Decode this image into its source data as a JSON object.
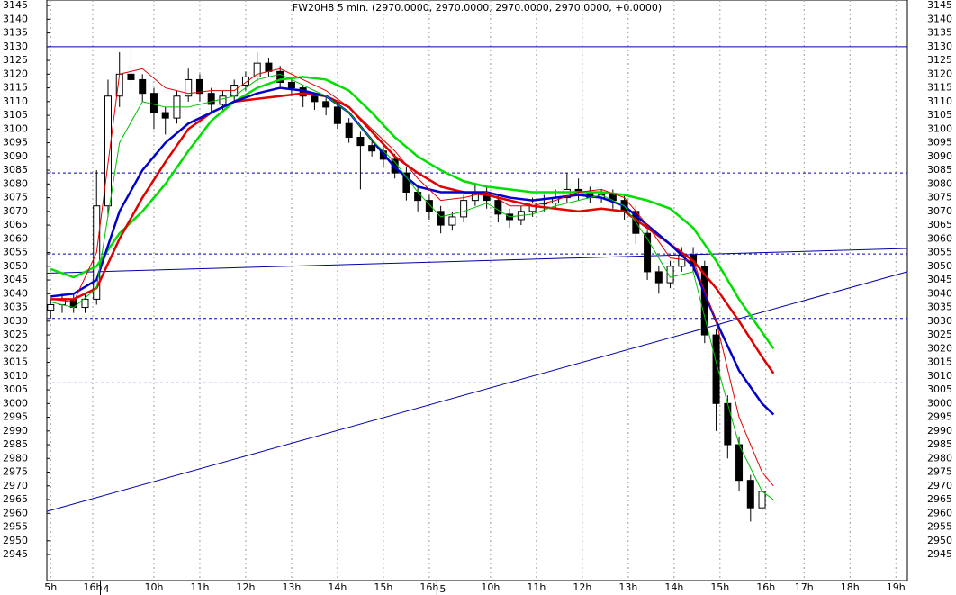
{
  "chart_data": {
    "type": "candlestick",
    "title": "FW20H8 5 min. (2970.0000, 2970.0000, 2970.0000, 2970.0000, +0.0000)",
    "xlim": [
      0,
      225
    ],
    "ylim": [
      2935.5,
      3147
    ],
    "xticks": [
      {
        "value": 1,
        "label": "5h"
      },
      {
        "value": 12,
        "label": "16h"
      },
      {
        "value": 28,
        "label": "10h"
      },
      {
        "value": 40,
        "label": "11h"
      },
      {
        "value": 52,
        "label": "12h"
      },
      {
        "value": 64,
        "label": "13h"
      },
      {
        "value": 76,
        "label": "14h"
      },
      {
        "value": 88,
        "label": "15h"
      },
      {
        "value": 100,
        "label": "16h"
      },
      {
        "value": 116,
        "label": "10h"
      },
      {
        "value": 128,
        "label": "11h"
      },
      {
        "value": 140,
        "label": "12h"
      },
      {
        "value": 152,
        "label": "13h"
      },
      {
        "value": 164,
        "label": "14h"
      },
      {
        "value": 176,
        "label": "15h"
      },
      {
        "value": 188,
        "label": "16h"
      },
      {
        "value": 198,
        "label": "17h"
      },
      {
        "value": 210,
        "label": "18h"
      },
      {
        "value": 222,
        "label": "19h"
      }
    ],
    "date_labels": [
      {
        "value": 14,
        "label": "4"
      },
      {
        "value": 102,
        "label": "5"
      }
    ],
    "yticks": [
      2945,
      2950,
      2955,
      2960,
      2965,
      2970,
      2975,
      2980,
      2985,
      2990,
      2995,
      3000,
      3005,
      3010,
      3015,
      3020,
      3025,
      3030,
      3035,
      3040,
      3045,
      3050,
      3055,
      3060,
      3065,
      3070,
      3075,
      3080,
      3085,
      3090,
      3095,
      3100,
      3105,
      3110,
      3115,
      3120,
      3125,
      3130,
      3135,
      3140,
      3145
    ],
    "grid": true,
    "up_color": "#ffffff",
    "down_color": "#000000",
    "x": [
      1,
      4,
      7,
      10,
      13,
      16,
      19,
      22,
      25,
      28,
      31,
      34,
      37,
      40,
      43,
      46,
      49,
      52,
      55,
      58,
      61,
      64,
      67,
      70,
      73,
      76,
      79,
      82,
      85,
      88,
      91,
      94,
      97,
      100,
      103,
      106,
      109,
      112,
      115,
      118,
      121,
      124,
      127,
      130,
      133,
      136,
      139,
      142,
      145,
      148,
      151,
      154,
      157,
      160,
      163,
      166,
      169,
      172,
      175,
      178,
      181,
      184,
      187
    ],
    "open": [
      3034,
      3036,
      3038,
      3035,
      3038,
      3072,
      3112,
      3120,
      3118,
      3113,
      3106,
      3104,
      3112,
      3118,
      3113,
      3109,
      3112,
      3116,
      3119,
      3124,
      3121,
      3117,
      3115,
      3112,
      3110,
      3108,
      3102,
      3097,
      3094,
      3092,
      3089,
      3084,
      3077,
      3074,
      3070,
      3065,
      3068,
      3074,
      3077,
      3074,
      3069,
      3067,
      3070,
      3073,
      3073,
      3075,
      3078,
      3077,
      3075,
      3076,
      3074,
      3070,
      3062,
      3048,
      3044,
      3050,
      3054,
      3050,
      3025,
      3000,
      2985,
      2972,
      2962
    ],
    "high": [
      3038,
      3040,
      3040,
      3040,
      3085,
      3118,
      3128,
      3130,
      3120,
      3115,
      3108,
      3114,
      3122,
      3120,
      3115,
      3114,
      3118,
      3121,
      3128,
      3126,
      3123,
      3118,
      3116,
      3113,
      3112,
      3110,
      3104,
      3099,
      3096,
      3094,
      3091,
      3086,
      3079,
      3076,
      3072,
      3070,
      3076,
      3080,
      3079,
      3076,
      3071,
      3072,
      3075,
      3076,
      3078,
      3084,
      3082,
      3079,
      3078,
      3078,
      3076,
      3072,
      3063,
      3050,
      3052,
      3057,
      3057,
      3052,
      3027,
      3003,
      2988,
      2974,
      2972
    ],
    "low": [
      3031,
      3033,
      3033,
      3033,
      3036,
      3068,
      3108,
      3115,
      3110,
      3100,
      3098,
      3102,
      3110,
      3110,
      3106,
      3107,
      3110,
      3114,
      3117,
      3119,
      3115,
      3112,
      3108,
      3107,
      3105,
      3100,
      3095,
      3078,
      3090,
      3086,
      3082,
      3074,
      3070,
      3067,
      3062,
      3063,
      3066,
      3072,
      3071,
      3066,
      3064,
      3065,
      3068,
      3070,
      3071,
      3073,
      3074,
      3073,
      3073,
      3071,
      3067,
      3058,
      3045,
      3040,
      3042,
      3048,
      3048,
      3022,
      2990,
      2980,
      2968,
      2957,
      2960
    ],
    "close": [
      3036,
      3038,
      3035,
      3038,
      3072,
      3112,
      3120,
      3118,
      3113,
      3106,
      3104,
      3112,
      3118,
      3113,
      3109,
      3112,
      3116,
      3119,
      3124,
      3121,
      3117,
      3115,
      3112,
      3110,
      3108,
      3102,
      3097,
      3094,
      3092,
      3089,
      3084,
      3077,
      3074,
      3070,
      3065,
      3068,
      3074,
      3077,
      3074,
      3069,
      3067,
      3070,
      3073,
      3073,
      3075,
      3078,
      3077,
      3075,
      3076,
      3074,
      3070,
      3062,
      3048,
      3044,
      3050,
      3054,
      3050,
      3025,
      3000,
      2985,
      2972,
      2962,
      2968
    ],
    "series": [
      {
        "color": "#00e000",
        "width": 2.5,
        "x": [
          1,
          7,
          13,
          19,
          25,
          31,
          37,
          43,
          49,
          55,
          61,
          67,
          73,
          79,
          85,
          91,
          97,
          103,
          109,
          115,
          121,
          127,
          133,
          139,
          145,
          151,
          157,
          163,
          169,
          175,
          181,
          187,
          190
        ],
        "values": [
          3049,
          3046,
          3050,
          3062,
          3070,
          3080,
          3092,
          3103,
          3110,
          3115,
          3118,
          3119,
          3118,
          3114,
          3106,
          3097,
          3090,
          3085,
          3081,
          3079,
          3078,
          3077,
          3077,
          3077,
          3077,
          3076,
          3074,
          3071,
          3064,
          3052,
          3038,
          3026,
          3020
        ]
      },
      {
        "color": "#e00000",
        "width": 2.5,
        "x": [
          1,
          7,
          13,
          19,
          25,
          31,
          37,
          43,
          49,
          55,
          61,
          67,
          73,
          79,
          85,
          91,
          97,
          103,
          109,
          115,
          121,
          127,
          133,
          139,
          145,
          151,
          157,
          163,
          169,
          175,
          181,
          187,
          190
        ],
        "values": [
          3038,
          3038,
          3042,
          3060,
          3075,
          3088,
          3100,
          3106,
          3110,
          3111,
          3112,
          3113,
          3112,
          3108,
          3099,
          3090,
          3084,
          3079,
          3077,
          3076,
          3074,
          3072,
          3071,
          3070,
          3071,
          3070,
          3064,
          3058,
          3052,
          3042,
          3030,
          3017,
          3011
        ]
      },
      {
        "color": "#0000cc",
        "width": 2.5,
        "x": [
          1,
          7,
          13,
          19,
          25,
          31,
          37,
          43,
          49,
          55,
          61,
          67,
          73,
          79,
          85,
          91,
          97,
          103,
          109,
          115,
          121,
          127,
          133,
          139,
          145,
          151,
          157,
          163,
          169,
          175,
          181,
          187,
          190
        ],
        "values": [
          3039,
          3040,
          3045,
          3070,
          3085,
          3095,
          3102,
          3106,
          3110,
          3113,
          3115,
          3114,
          3112,
          3106,
          3096,
          3086,
          3079,
          3077,
          3077,
          3077,
          3075,
          3074,
          3075,
          3076,
          3075,
          3072,
          3065,
          3058,
          3050,
          3030,
          3012,
          3000,
          2996
        ]
      },
      {
        "color": "#e00000",
        "width": 1,
        "x": [
          1,
          7,
          13,
          19,
          25,
          31,
          37,
          43,
          49,
          55,
          61,
          67,
          73,
          79,
          85,
          91,
          97,
          103,
          109,
          115,
          121,
          127,
          133,
          139,
          145,
          151,
          157,
          163,
          169,
          175,
          181,
          187,
          190
        ],
        "values": [
          3038,
          3037,
          3055,
          3120,
          3122,
          3115,
          3113,
          3114,
          3114,
          3120,
          3122,
          3118,
          3114,
          3108,
          3100,
          3092,
          3082,
          3074,
          3075,
          3077,
          3072,
          3072,
          3074,
          3077,
          3078,
          3075,
          3065,
          3053,
          3052,
          3030,
          2995,
          2975,
          2970
        ]
      },
      {
        "color": "#00c000",
        "width": 1,
        "x": [
          1,
          7,
          13,
          19,
          25,
          31,
          37,
          43,
          49,
          55,
          61,
          67,
          73,
          79,
          85,
          91,
          97,
          103,
          109,
          115,
          121,
          127,
          133,
          139,
          145,
          151,
          157,
          163,
          169,
          175,
          181,
          187,
          190
        ],
        "values": [
          3037,
          3035,
          3042,
          3095,
          3110,
          3108,
          3108,
          3110,
          3112,
          3118,
          3120,
          3116,
          3112,
          3106,
          3096,
          3088,
          3077,
          3068,
          3070,
          3073,
          3068,
          3069,
          3072,
          3074,
          3076,
          3072,
          3060,
          3046,
          3048,
          3015,
          2985,
          2968,
          2965
        ]
      }
    ],
    "solid_levels": [
      3130
    ],
    "dashed_levels": [
      3084,
      3054.5,
      3031,
      3007.5
    ],
    "level_color": "#0000aa",
    "trendlines": [
      {
        "x": [
          0,
          225
        ],
        "y": [
          3047.5,
          3056.5
        ]
      },
      {
        "x": [
          0,
          225
        ],
        "y": [
          2960.7,
          3048
        ]
      }
    ]
  }
}
